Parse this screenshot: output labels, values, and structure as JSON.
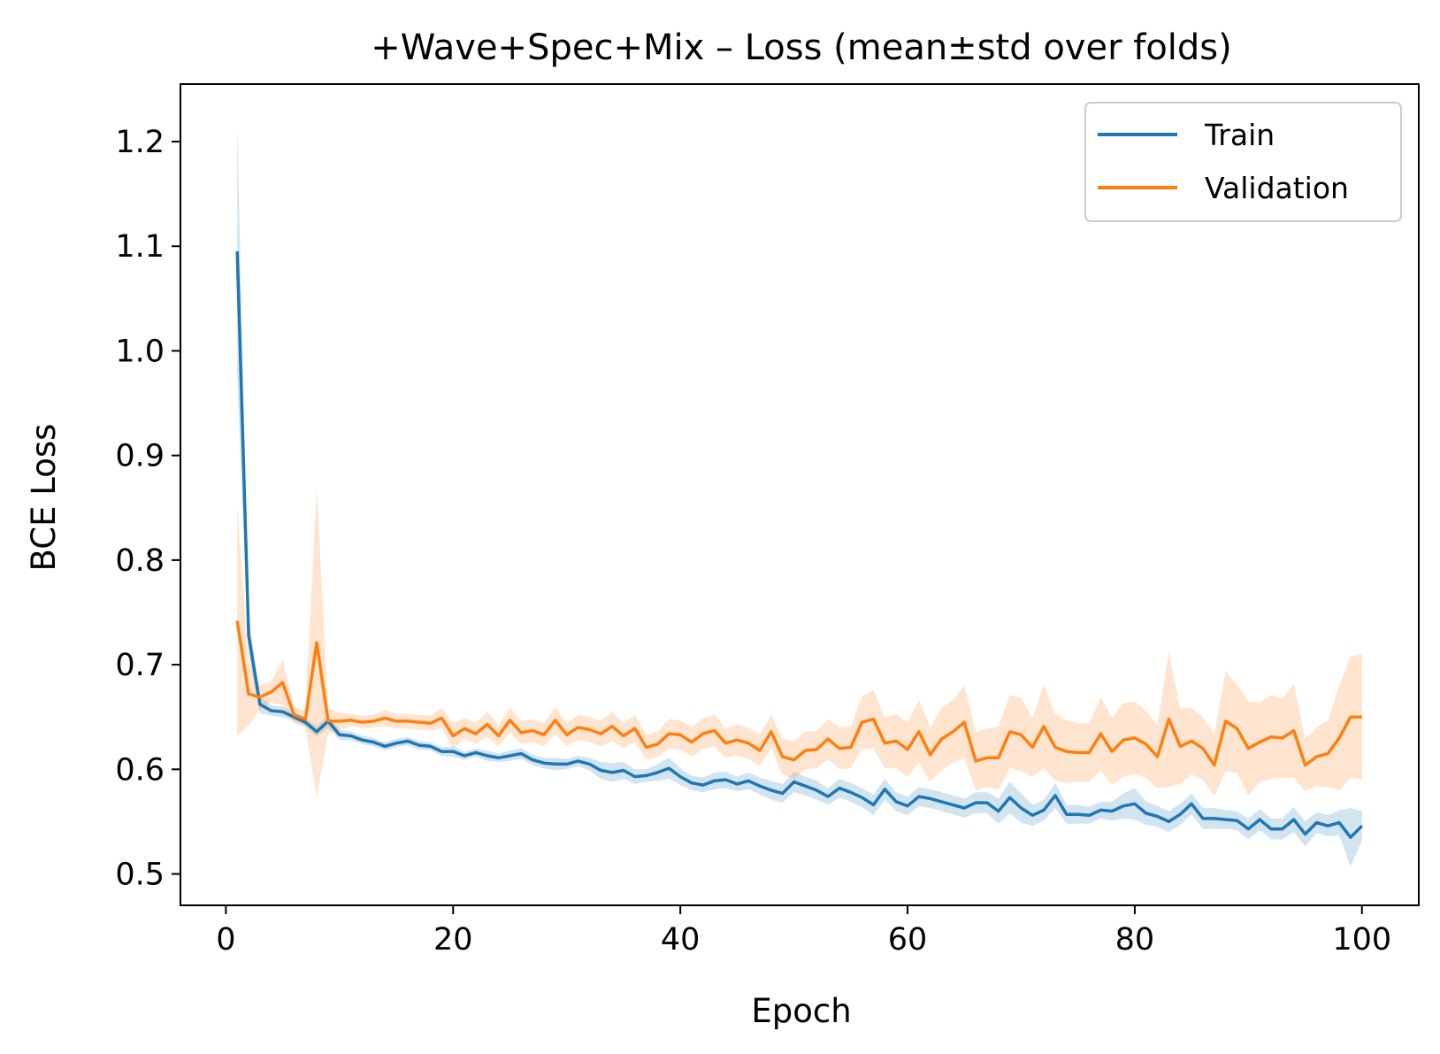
{
  "chart_data": {
    "type": "line",
    "title": "+Wave+Spec+Mix – Loss (mean±std over folds)",
    "xlabel": "Epoch",
    "ylabel": "BCE Loss",
    "xlim": [
      -4,
      105
    ],
    "ylim": [
      0.47,
      1.255
    ],
    "xticks": [
      0,
      20,
      40,
      60,
      80,
      100
    ],
    "xtick_labels": [
      "0",
      "20",
      "40",
      "60",
      "80",
      "100"
    ],
    "yticks": [
      0.5,
      0.6,
      0.7,
      0.8,
      0.9,
      1.0,
      1.1,
      1.2
    ],
    "ytick_labels": [
      "0.5",
      "0.6",
      "0.7",
      "0.8",
      "0.9",
      "1.0",
      "1.1",
      "1.2"
    ],
    "grid": false,
    "legend_position": "top-right",
    "series": [
      {
        "name": "Train",
        "color": "#1f77b4",
        "band_color": "#1f77b4",
        "x": [
          1,
          2,
          3,
          4,
          5,
          6,
          7,
          8,
          9,
          10,
          11,
          12,
          13,
          14,
          15,
          16,
          17,
          18,
          19,
          20,
          21,
          22,
          23,
          24,
          25,
          26,
          27,
          28,
          29,
          30,
          31,
          32,
          33,
          34,
          35,
          36,
          37,
          38,
          39,
          40,
          41,
          42,
          43,
          44,
          45,
          46,
          47,
          48,
          49,
          50,
          51,
          52,
          53,
          54,
          55,
          56,
          57,
          58,
          59,
          60,
          61,
          62,
          63,
          64,
          65,
          66,
          67,
          68,
          69,
          70,
          71,
          72,
          73,
          74,
          75,
          76,
          77,
          78,
          79,
          80,
          81,
          82,
          83,
          84,
          85,
          86,
          87,
          88,
          89,
          90,
          91,
          92,
          93,
          94,
          95,
          96,
          97,
          98,
          99,
          100
        ],
        "values": [
          1.095,
          0.728,
          0.662,
          0.656,
          0.655,
          0.65,
          0.645,
          0.636,
          0.646,
          0.633,
          0.632,
          0.628,
          0.626,
          0.622,
          0.625,
          0.627,
          0.623,
          0.622,
          0.617,
          0.617,
          0.613,
          0.616,
          0.613,
          0.611,
          0.613,
          0.615,
          0.609,
          0.606,
          0.605,
          0.605,
          0.608,
          0.605,
          0.599,
          0.597,
          0.599,
          0.593,
          0.594,
          0.597,
          0.601,
          0.593,
          0.587,
          0.585,
          0.589,
          0.59,
          0.586,
          0.589,
          0.584,
          0.58,
          0.577,
          0.588,
          0.584,
          0.58,
          0.574,
          0.582,
          0.578,
          0.573,
          0.566,
          0.581,
          0.569,
          0.565,
          0.574,
          0.572,
          0.569,
          0.566,
          0.563,
          0.568,
          0.568,
          0.56,
          0.573,
          0.563,
          0.556,
          0.561,
          0.575,
          0.557,
          0.557,
          0.556,
          0.561,
          0.56,
          0.565,
          0.567,
          0.558,
          0.555,
          0.55,
          0.557,
          0.567,
          0.553,
          0.553,
          0.552,
          0.551,
          0.543,
          0.552,
          0.543,
          0.543,
          0.552,
          0.538,
          0.549,
          0.546,
          0.549,
          0.535,
          0.546
        ],
        "std": [
          0.12,
          0.02,
          0.008,
          0.005,
          0.005,
          0.004,
          0.004,
          0.005,
          0.006,
          0.005,
          0.004,
          0.004,
          0.004,
          0.004,
          0.004,
          0.004,
          0.004,
          0.004,
          0.004,
          0.005,
          0.004,
          0.004,
          0.005,
          0.004,
          0.005,
          0.005,
          0.005,
          0.005,
          0.006,
          0.005,
          0.005,
          0.006,
          0.008,
          0.009,
          0.008,
          0.007,
          0.006,
          0.008,
          0.01,
          0.008,
          0.007,
          0.007,
          0.008,
          0.008,
          0.007,
          0.008,
          0.008,
          0.009,
          0.009,
          0.01,
          0.009,
          0.009,
          0.008,
          0.009,
          0.009,
          0.009,
          0.01,
          0.01,
          0.009,
          0.009,
          0.009,
          0.009,
          0.009,
          0.009,
          0.009,
          0.01,
          0.01,
          0.012,
          0.015,
          0.014,
          0.01,
          0.01,
          0.012,
          0.009,
          0.009,
          0.008,
          0.008,
          0.009,
          0.012,
          0.015,
          0.011,
          0.01,
          0.01,
          0.01,
          0.01,
          0.01,
          0.01,
          0.009,
          0.009,
          0.01,
          0.01,
          0.01,
          0.01,
          0.012,
          0.012,
          0.01,
          0.01,
          0.012,
          0.028,
          0.014
        ]
      },
      {
        "name": "Validation",
        "color": "#ff7f0e",
        "band_color": "#ff7f0e",
        "x": [
          1,
          2,
          3,
          4,
          5,
          6,
          7,
          8,
          9,
          10,
          11,
          12,
          13,
          14,
          15,
          16,
          17,
          18,
          19,
          20,
          21,
          22,
          23,
          24,
          25,
          26,
          27,
          28,
          29,
          30,
          31,
          32,
          33,
          34,
          35,
          36,
          37,
          38,
          39,
          40,
          41,
          42,
          43,
          44,
          45,
          46,
          47,
          48,
          49,
          50,
          51,
          52,
          53,
          54,
          55,
          56,
          57,
          58,
          59,
          60,
          61,
          62,
          63,
          64,
          65,
          66,
          67,
          68,
          69,
          70,
          71,
          72,
          73,
          74,
          75,
          76,
          77,
          78,
          79,
          80,
          81,
          82,
          83,
          84,
          85,
          86,
          87,
          88,
          89,
          90,
          91,
          92,
          93,
          94,
          95,
          96,
          97,
          98,
          99,
          100
        ],
        "values": [
          0.742,
          0.672,
          0.669,
          0.674,
          0.683,
          0.652,
          0.648,
          0.721,
          0.646,
          0.646,
          0.647,
          0.645,
          0.646,
          0.649,
          0.646,
          0.646,
          0.645,
          0.644,
          0.649,
          0.632,
          0.639,
          0.634,
          0.643,
          0.632,
          0.647,
          0.635,
          0.637,
          0.633,
          0.647,
          0.633,
          0.64,
          0.638,
          0.634,
          0.641,
          0.632,
          0.639,
          0.621,
          0.624,
          0.634,
          0.633,
          0.626,
          0.634,
          0.637,
          0.625,
          0.628,
          0.625,
          0.618,
          0.636,
          0.612,
          0.609,
          0.618,
          0.619,
          0.629,
          0.62,
          0.621,
          0.645,
          0.648,
          0.625,
          0.627,
          0.619,
          0.636,
          0.614,
          0.629,
          0.636,
          0.645,
          0.608,
          0.611,
          0.611,
          0.636,
          0.633,
          0.621,
          0.641,
          0.621,
          0.617,
          0.616,
          0.616,
          0.634,
          0.617,
          0.628,
          0.63,
          0.624,
          0.612,
          0.648,
          0.622,
          0.627,
          0.62,
          0.604,
          0.646,
          0.639,
          0.62,
          0.626,
          0.631,
          0.63,
          0.637,
          0.604,
          0.612,
          0.615,
          0.63,
          0.65,
          0.65
        ],
        "std": [
          0.11,
          0.03,
          0.012,
          0.01,
          0.022,
          0.008,
          0.008,
          0.148,
          0.012,
          0.008,
          0.006,
          0.006,
          0.006,
          0.008,
          0.007,
          0.007,
          0.007,
          0.007,
          0.01,
          0.012,
          0.01,
          0.01,
          0.012,
          0.01,
          0.012,
          0.011,
          0.011,
          0.011,
          0.013,
          0.011,
          0.012,
          0.012,
          0.012,
          0.014,
          0.012,
          0.013,
          0.012,
          0.012,
          0.014,
          0.014,
          0.014,
          0.015,
          0.015,
          0.014,
          0.015,
          0.015,
          0.015,
          0.016,
          0.017,
          0.018,
          0.018,
          0.018,
          0.019,
          0.02,
          0.02,
          0.025,
          0.028,
          0.024,
          0.026,
          0.026,
          0.03,
          0.026,
          0.03,
          0.03,
          0.035,
          0.028,
          0.028,
          0.03,
          0.035,
          0.035,
          0.028,
          0.04,
          0.032,
          0.03,
          0.028,
          0.028,
          0.035,
          0.032,
          0.035,
          0.035,
          0.032,
          0.03,
          0.065,
          0.036,
          0.032,
          0.03,
          0.03,
          0.048,
          0.042,
          0.045,
          0.038,
          0.04,
          0.038,
          0.045,
          0.025,
          0.028,
          0.032,
          0.05,
          0.058,
          0.06
        ]
      }
    ]
  }
}
